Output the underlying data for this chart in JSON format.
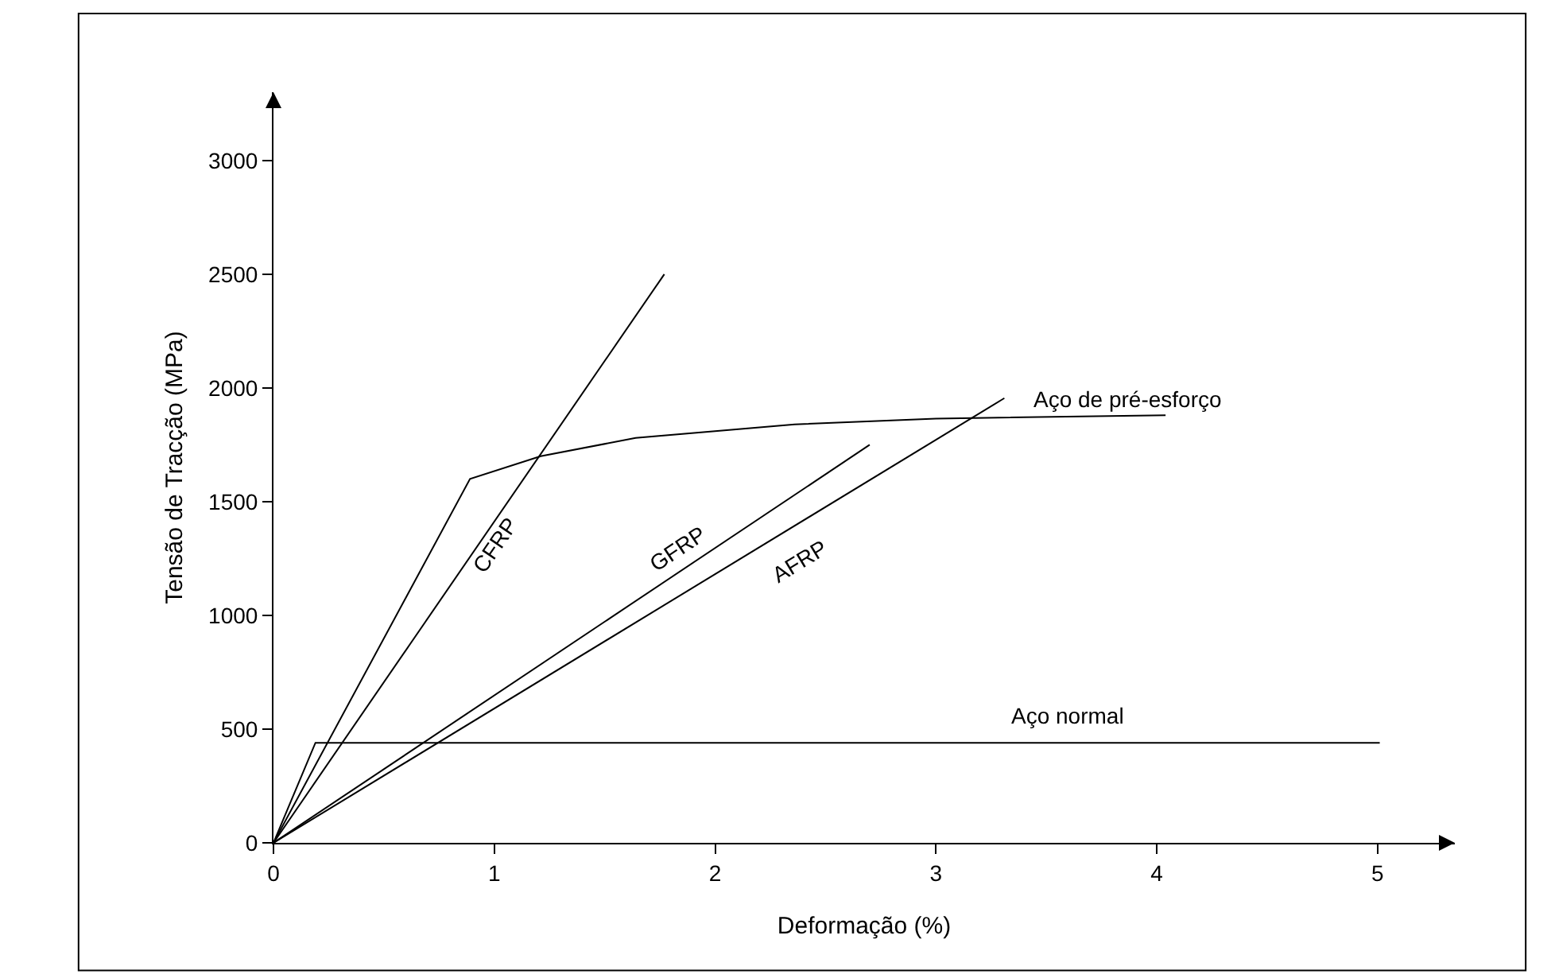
{
  "chart_data": {
    "type": "line",
    "xlabel": "Deformação (%)",
    "ylabel": "Tensão de Tracção (MPa)",
    "xlim": [
      0,
      5.35
    ],
    "ylim": [
      0,
      3300
    ],
    "xticks": [
      0,
      1,
      2,
      3,
      4,
      5
    ],
    "yticks": [
      0,
      500,
      1000,
      1500,
      2000,
      2500,
      3000
    ],
    "grid": false,
    "legend": false,
    "marker": "none",
    "line_style": "solid",
    "series": [
      {
        "name": "CFRP",
        "color": "#000000",
        "x": [
          0,
          1.77
        ],
        "values": [
          0,
          2500
        ]
      },
      {
        "name": "Aço de pré-esforço",
        "color": "#000000",
        "x": [
          0,
          0.89,
          1.21,
          1.64,
          2.36,
          3.0,
          4.04
        ],
        "values": [
          0,
          1600,
          1700,
          1780,
          1840,
          1865,
          1880
        ]
      },
      {
        "name": "GFRP",
        "color": "#000000",
        "x": [
          0,
          2.7
        ],
        "values": [
          0,
          1750
        ]
      },
      {
        "name": "AFRP",
        "color": "#000000",
        "x": [
          0,
          3.31
        ],
        "values": [
          0,
          1955
        ]
      },
      {
        "name": "Aço normal",
        "color": "#000000",
        "x": [
          0,
          0.19,
          5.01
        ],
        "values": [
          0,
          440,
          440
        ]
      }
    ]
  }
}
